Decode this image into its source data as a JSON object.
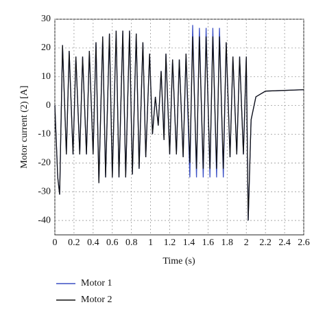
{
  "chart_data": {
    "type": "line",
    "xlabel": "Time (s)",
    "ylabel": "Motor current (2) [A]",
    "x": [
      0,
      0.03,
      0.05,
      0.08,
      0.12,
      0.15,
      0.19,
      0.22,
      0.26,
      0.29,
      0.33,
      0.36,
      0.4,
      0.43,
      0.46,
      0.5,
      0.53,
      0.57,
      0.6,
      0.64,
      0.67,
      0.71,
      0.74,
      0.78,
      0.81,
      0.85,
      0.88,
      0.92,
      0.95,
      0.99,
      1.02,
      1.05,
      1.08,
      1.11,
      1.14,
      1.16,
      1.2,
      1.23,
      1.27,
      1.3,
      1.34,
      1.37,
      1.41,
      1.44,
      1.48,
      1.51,
      1.55,
      1.58,
      1.62,
      1.65,
      1.69,
      1.72,
      1.76,
      1.79,
      1.83,
      1.86,
      1.9,
      1.93,
      1.97,
      2,
      2.02,
      2.05,
      2.1,
      2.2,
      2.6
    ],
    "series": [
      {
        "name": "Motor 1",
        "color": "#3a4fc4",
        "values": [
          0,
          -25,
          -31,
          21,
          -17,
          19,
          -17,
          17,
          -17,
          17,
          -17,
          19,
          -17,
          22,
          -27,
          24,
          -25,
          25,
          -25,
          26,
          -25,
          26,
          -25,
          26,
          -24,
          25,
          -22,
          22,
          -18,
          18,
          -10,
          3,
          -7,
          12,
          -12,
          18,
          -17,
          16,
          -17,
          16,
          -18,
          18,
          -25,
          28,
          -25,
          27,
          -25,
          27,
          -25,
          27,
          -25,
          27,
          -25,
          22,
          -18,
          17,
          -17,
          17,
          -17,
          17,
          -40,
          -5,
          3,
          5,
          5.5
        ]
      },
      {
        "name": "Motor 2",
        "color": "#111111",
        "values": [
          0,
          -25,
          -31,
          21,
          -17,
          19,
          -17,
          17,
          -17,
          17,
          -17,
          19,
          -17,
          22,
          -27,
          24,
          -25,
          25,
          -25,
          26,
          -25,
          26,
          -25,
          26,
          -24,
          25,
          -22,
          22,
          -18,
          18,
          -10,
          3,
          -7,
          12,
          -12,
          18,
          -17,
          16,
          -17,
          16,
          -18,
          18,
          -20,
          24,
          -22,
          24,
          -22,
          24,
          -22,
          24,
          -22,
          24,
          -22,
          22,
          -18,
          17,
          -17,
          17,
          -17,
          17,
          -40,
          -5,
          3,
          5,
          5.5
        ]
      }
    ],
    "xlim": [
      0,
      2.6
    ],
    "xticks": [
      0,
      0.2,
      0.4,
      0.6,
      0.8,
      1,
      1.2,
      1.4,
      1.6,
      1.8,
      2,
      2.2,
      2.4,
      2.6
    ],
    "ylim": [
      -45,
      30
    ],
    "yticks": [
      -40,
      -30,
      -20,
      -10,
      0,
      10,
      20,
      30
    ],
    "grid": true,
    "legend": "bottom-left"
  }
}
